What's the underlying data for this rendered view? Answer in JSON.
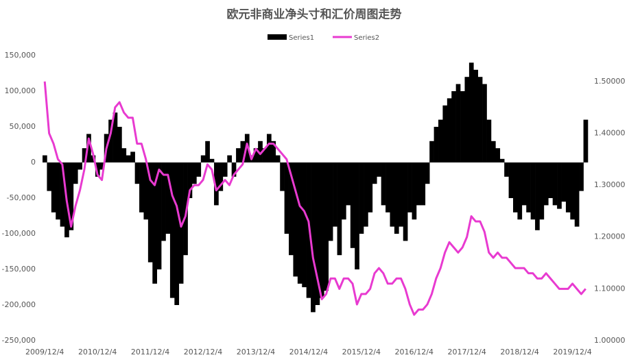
{
  "chart_data": {
    "type": "bar-line",
    "title": "欧元非商业净头寸和汇价周图走势",
    "categories": [
      "2009/12/4",
      null,
      null,
      null,
      null,
      null,
      null,
      null,
      null,
      null,
      null,
      null,
      "2010/12/4",
      null,
      null,
      null,
      null,
      null,
      null,
      null,
      null,
      null,
      null,
      null,
      "2011/12/4",
      null,
      null,
      null,
      null,
      null,
      null,
      null,
      null,
      null,
      null,
      null,
      "2012/12/4",
      null,
      null,
      null,
      null,
      null,
      null,
      null,
      null,
      null,
      null,
      null,
      "2013/12/4",
      null,
      null,
      null,
      null,
      null,
      null,
      null,
      null,
      null,
      null,
      null,
      "2014/12/4",
      null,
      null,
      null,
      null,
      null,
      null,
      null,
      null,
      null,
      null,
      null,
      "2015/12/4",
      null,
      null,
      null,
      null,
      null,
      null,
      null,
      null,
      null,
      null,
      null,
      "2016/12/4",
      null,
      null,
      null,
      null,
      null,
      null,
      null,
      null,
      null,
      null,
      null,
      "2017/12/4",
      null,
      null,
      null,
      null,
      null,
      null,
      null,
      null,
      null,
      null,
      null,
      "2018/12/4",
      null,
      null,
      null,
      null,
      null,
      null,
      null,
      null,
      null,
      null,
      null,
      "2019/12/4",
      null,
      null,
      null
    ],
    "series": [
      {
        "name": "Series1",
        "type": "bar",
        "color": "#000000",
        "values": [
          10000,
          -40000,
          -70000,
          -80000,
          -90000,
          -105000,
          -95000,
          -30000,
          -10000,
          20000,
          40000,
          10000,
          -20000,
          -10000,
          40000,
          60000,
          70000,
          50000,
          20000,
          10000,
          15000,
          -30000,
          -70000,
          -80000,
          -140000,
          -170000,
          -150000,
          -110000,
          -100000,
          -190000,
          -200000,
          -170000,
          -130000,
          -50000,
          -30000,
          -20000,
          10000,
          30000,
          5000,
          -60000,
          -40000,
          -20000,
          10000,
          -20000,
          20000,
          30000,
          40000,
          10000,
          20000,
          30000,
          20000,
          40000,
          30000,
          10000,
          -40000,
          -100000,
          -130000,
          -160000,
          -170000,
          -175000,
          -190000,
          -210000,
          -200000,
          -190000,
          -180000,
          -110000,
          -90000,
          -130000,
          -80000,
          -60000,
          -120000,
          -150000,
          -100000,
          -90000,
          -70000,
          -30000,
          -20000,
          -60000,
          -70000,
          -90000,
          -100000,
          -90000,
          -110000,
          -70000,
          -80000,
          -60000,
          -60000,
          -30000,
          30000,
          50000,
          60000,
          80000,
          90000,
          100000,
          110000,
          100000,
          120000,
          140000,
          130000,
          120000,
          110000,
          60000,
          30000,
          20000,
          5000,
          -20000,
          -50000,
          -70000,
          -80000,
          -60000,
          -70000,
          -80000,
          -95000,
          -80000,
          -60000,
          -50000,
          -60000,
          -65000,
          -55000,
          -70000,
          -80000,
          -90000,
          -40000,
          60000
        ]
      },
      {
        "name": "Series2",
        "type": "line",
        "axis": "y2",
        "color": "#e83ad0",
        "values": [
          1.5,
          1.4,
          1.38,
          1.35,
          1.34,
          1.27,
          1.22,
          1.26,
          1.29,
          1.33,
          1.39,
          1.36,
          1.32,
          1.31,
          1.37,
          1.4,
          1.45,
          1.46,
          1.44,
          1.43,
          1.43,
          1.38,
          1.38,
          1.35,
          1.31,
          1.3,
          1.33,
          1.32,
          1.32,
          1.28,
          1.26,
          1.22,
          1.24,
          1.29,
          1.3,
          1.3,
          1.31,
          1.34,
          1.33,
          1.29,
          1.3,
          1.31,
          1.3,
          1.32,
          1.33,
          1.34,
          1.38,
          1.35,
          1.37,
          1.36,
          1.37,
          1.38,
          1.38,
          1.37,
          1.36,
          1.35,
          1.32,
          1.29,
          1.26,
          1.25,
          1.23,
          1.16,
          1.12,
          1.08,
          1.09,
          1.12,
          1.12,
          1.1,
          1.12,
          1.12,
          1.11,
          1.07,
          1.09,
          1.09,
          1.1,
          1.13,
          1.14,
          1.13,
          1.11,
          1.11,
          1.12,
          1.12,
          1.1,
          1.07,
          1.05,
          1.06,
          1.06,
          1.07,
          1.09,
          1.12,
          1.14,
          1.17,
          1.19,
          1.18,
          1.17,
          1.18,
          1.2,
          1.24,
          1.23,
          1.23,
          1.21,
          1.17,
          1.16,
          1.17,
          1.16,
          1.16,
          1.15,
          1.14,
          1.14,
          1.14,
          1.13,
          1.13,
          1.12,
          1.12,
          1.13,
          1.12,
          1.11,
          1.1,
          1.1,
          1.1,
          1.11,
          1.1,
          1.09,
          1.1
        ]
      }
    ],
    "ylim": [
      -250000,
      150000
    ],
    "yticks": [
      {
        "value": -250000,
        "label": "-250,000"
      },
      {
        "value": -200000,
        "label": "-200,000"
      },
      {
        "value": -150000,
        "label": "-150,000"
      },
      {
        "value": -100000,
        "label": "-100,000"
      },
      {
        "value": -50000,
        "label": "-50,000"
      },
      0,
      {
        "value": 50000,
        "label": "50,000"
      },
      {
        "value": 100000,
        "label": "100,000"
      },
      {
        "value": 150000,
        "label": "150,000"
      }
    ],
    "y2lim": [
      1.0,
      1.55
    ],
    "y2ticks": [
      {
        "value": 1.0,
        "label": "1.00000"
      },
      {
        "value": 1.1,
        "label": "1.10000"
      },
      {
        "value": 1.2,
        "label": "1.20000"
      },
      {
        "value": 1.3,
        "label": "1.30000"
      },
      {
        "value": 1.4,
        "label": "1.40000"
      },
      {
        "value": 1.5,
        "label": "1.50000"
      }
    ],
    "grid": false,
    "legend": "top"
  }
}
